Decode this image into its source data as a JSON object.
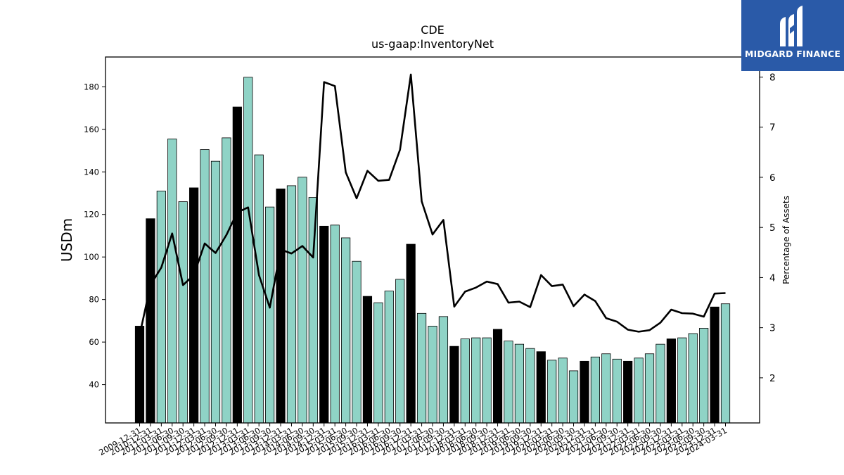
{
  "chart_data": {
    "type": "bar",
    "title": "CDE",
    "subtitle": "us-gaap:InventoryNet",
    "ylabel": "USDm",
    "y2label": "Percentage of Assets",
    "ylim": [
      22,
      194
    ],
    "y2lim": [
      1.1,
      8.4
    ],
    "yticks": [
      40,
      60,
      80,
      100,
      120,
      140,
      160,
      180
    ],
    "y2ticks": [
      2,
      3,
      4,
      5,
      6,
      7,
      8
    ],
    "grid": false,
    "categories": [
      "2009-12-31",
      "2010-12-31",
      "2011-03-31",
      "2011-06-30",
      "2011-09-30",
      "2011-12-31",
      "2012-03-31",
      "2012-06-30",
      "2012-09-30",
      "2012-12-31",
      "2013-03-31",
      "2013-06-30",
      "2013-09-30",
      "2013-12-31",
      "2014-03-31",
      "2014-06-30",
      "2014-09-30",
      "2014-12-31",
      "2015-03-31",
      "2015-06-30",
      "2015-09-30",
      "2015-12-31",
      "2016-03-31",
      "2016-06-30",
      "2016-09-30",
      "2016-12-31",
      "2017-03-31",
      "2017-06-30",
      "2017-09-30",
      "2017-12-31",
      "2018-03-31",
      "2018-06-30",
      "2018-09-30",
      "2018-12-31",
      "2019-03-31",
      "2019-06-30",
      "2019-09-30",
      "2019-12-31",
      "2020-03-31",
      "2020-06-30",
      "2020-09-30",
      "2020-12-31",
      "2021-03-31",
      "2021-06-30",
      "2021-09-30",
      "2021-12-31",
      "2022-03-31",
      "2022-06-30",
      "2022-09-30",
      "2022-12-31",
      "2023-03-31",
      "2023-06-30",
      "2023-09-30",
      "2023-12-31",
      "2024-03-31"
    ],
    "bar_values": [
      67.5,
      118,
      131,
      155.5,
      126,
      132.5,
      150.5,
      145,
      156,
      170.5,
      184.5,
      148,
      123.5,
      132,
      133.5,
      137.5,
      128,
      114.5,
      115,
      109,
      98,
      81.5,
      78.5,
      84,
      89.5,
      106,
      73.5,
      67.5,
      72,
      58,
      61.5,
      62,
      62,
      66,
      60.5,
      59,
      57,
      55.5,
      51.5,
      52.5,
      46.5,
      51,
      53,
      54.5,
      52,
      51,
      52.5,
      54.5,
      59,
      61.5,
      62,
      64,
      66.5,
      76.5,
      78
    ],
    "annual_flags": [
      1,
      1,
      0,
      0,
      0,
      1,
      0,
      0,
      0,
      1,
      0,
      0,
      0,
      1,
      0,
      0,
      0,
      1,
      0,
      0,
      0,
      1,
      0,
      0,
      0,
      1,
      0,
      0,
      0,
      1,
      0,
      0,
      0,
      1,
      0,
      0,
      0,
      1,
      0,
      0,
      0,
      1,
      0,
      0,
      0,
      1,
      0,
      0,
      0,
      1,
      0,
      0,
      0,
      1,
      0
    ],
    "line_name": "Percentage of Assets",
    "line_values": [
      2.85,
      3.85,
      4.2,
      4.88,
      3.85,
      4.05,
      4.68,
      4.49,
      4.85,
      5.3,
      5.4,
      4.05,
      3.4,
      4.56,
      4.48,
      4.63,
      4.4,
      7.9,
      7.82,
      6.1,
      5.58,
      6.13,
      5.93,
      5.95,
      6.55,
      8.05,
      5.52,
      4.86,
      5.15,
      3.42,
      3.72,
      3.8,
      3.92,
      3.87,
      3.5,
      3.52,
      3.41,
      4.05,
      3.83,
      3.86,
      3.43,
      3.66,
      3.53,
      3.19,
      3.12,
      2.96,
      2.92,
      2.95,
      3.1,
      3.36,
      3.29,
      3.28,
      3.22,
      3.68,
      3.69
    ],
    "colors": {
      "bar_quarterly": "#8fd3c6",
      "bar_annual": "#000000",
      "bar_edge": "#000000",
      "line": "#000000"
    }
  },
  "logo": {
    "text": "MIDGARD FINANCE",
    "background": "#2a5aa8"
  }
}
